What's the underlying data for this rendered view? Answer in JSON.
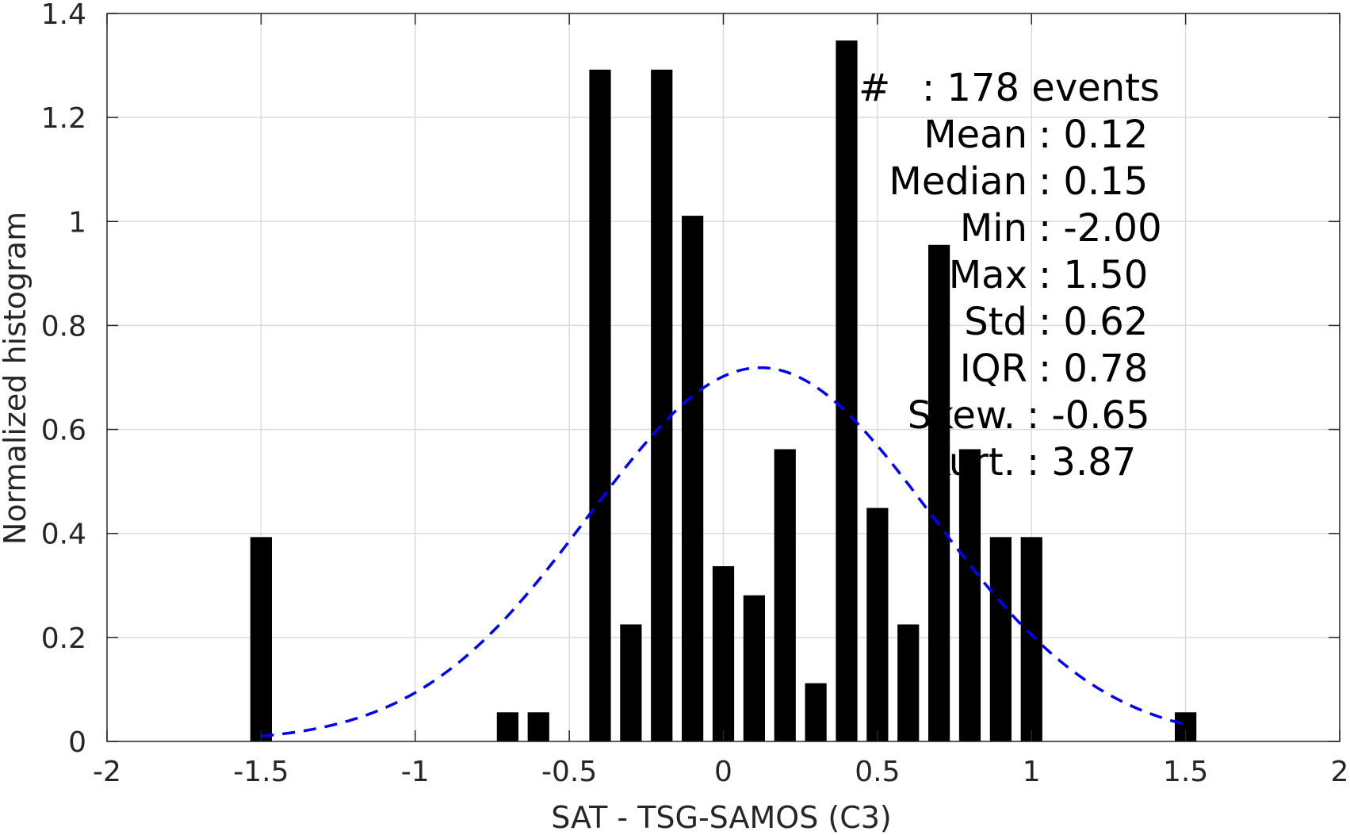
{
  "chart_data": {
    "type": "bar",
    "xlabel": "SAT - TSG-SAMOS (C3)",
    "ylabel": "Normalized histogram",
    "xlim": [
      -2,
      2
    ],
    "ylim": [
      0,
      1.4
    ],
    "grid": true,
    "x_ticks": [
      "-2",
      "-1.5",
      "-1",
      "-0.5",
      "0",
      "0.5",
      "1",
      "1.5",
      "2"
    ],
    "y_ticks": [
      "0",
      "0.2",
      "0.4",
      "0.6",
      "0.8",
      "1",
      "1.2",
      "1.4"
    ],
    "bar_color": "#000000",
    "bar_width": 0.07,
    "bars": {
      "x": [
        -1.5,
        -0.7,
        -0.6,
        -0.4,
        -0.3,
        -0.2,
        -0.1,
        0.0,
        0.1,
        0.2,
        0.3,
        0.4,
        0.5,
        0.6,
        0.7,
        0.8,
        0.9,
        1.0,
        1.5
      ],
      "values": [
        0.393,
        0.056,
        0.056,
        1.292,
        0.225,
        1.292,
        1.011,
        0.337,
        0.281,
        0.562,
        0.112,
        1.348,
        0.449,
        0.225,
        0.955,
        0.562,
        0.393,
        0.393,
        0.056
      ]
    },
    "fit_curve": {
      "color": "#0000ff",
      "style": "dashed",
      "mean": 0.12,
      "std": 0.555,
      "x_range": [
        -1.5,
        1.5
      ]
    },
    "stats": [
      {
        "label": "#",
        "value": "178 events"
      },
      {
        "label": "Mean",
        "value": "0.12"
      },
      {
        "label": "Median",
        "value": "0.15"
      },
      {
        "label": "Min",
        "value": "-2.00"
      },
      {
        "label": "Max",
        "value": "1.50"
      },
      {
        "label": "Std",
        "value": "0.62"
      },
      {
        "label": "IQR",
        "value": "0.78"
      },
      {
        "label": "Skew.",
        "value": "-0.65"
      },
      {
        "label": "Kurt.",
        "value": "3.87"
      }
    ]
  }
}
